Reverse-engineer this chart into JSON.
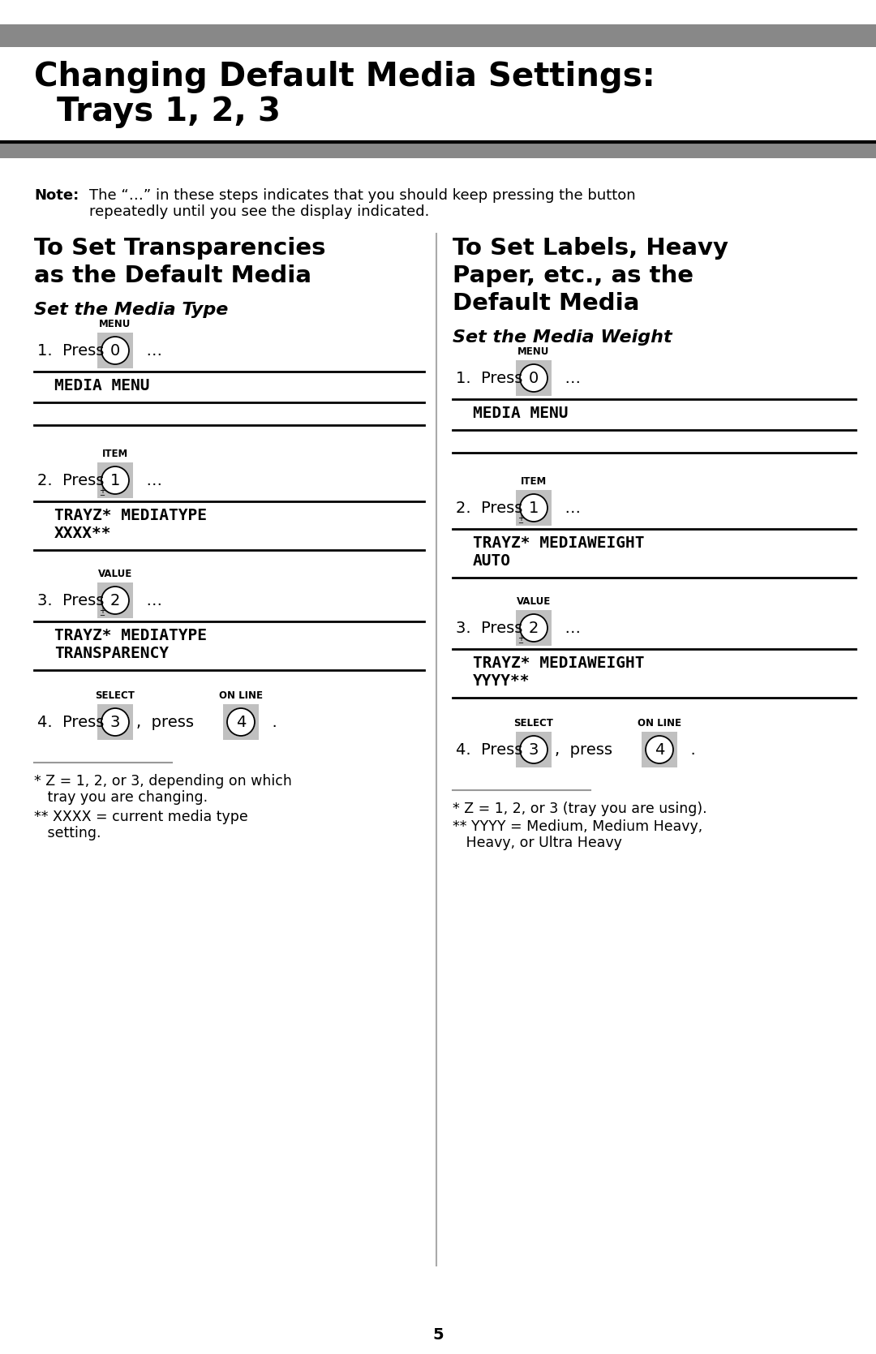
{
  "bg_color": "#ffffff",
  "page_number": "5",
  "top_bar_color": "#888888",
  "bottom_bar_color": "#888888",
  "title_line1": "Changing Default Media Settings:",
  "title_line2": "  Trays 1, 2, 3",
  "note_label": "Note",
  "note_line1": "The “…” in these steps indicates that you should keep pressing the button",
  "note_line2": "repeatedly until you see the display indicated.",
  "left_heading_lines": [
    "To Set Transparencies",
    "as the Default Media"
  ],
  "left_subheading": "Set the Media Type",
  "right_heading_lines": [
    "To Set Labels, Heavy",
    "Paper, etc., as the",
    "Default Media"
  ],
  "right_subheading": "Set the Media Weight",
  "left_displays": [
    "MEDIA MENU",
    "TRAYZ* MEDIATYPE\nXXXX**",
    "TRAYZ* MEDIATYPE\nTRANSPARENCY"
  ],
  "right_displays": [
    "MEDIA MENU",
    "TRAYZ* MEDIAWEIGHT\nAUTO",
    "TRAYZ* MEDIAWEIGHT\nYYYY**"
  ],
  "btn_bg": "#c0c0c0",
  "left_fn1": "* Z = 1, 2, or 3, depending on which",
  "left_fn1b": "   tray you are changing.",
  "left_fn2": "** XXXX = current media type",
  "left_fn2b": "   setting.",
  "right_fn1": "* Z = 1, 2, or 3 (tray you are using).",
  "right_fn2": "** YYYY = Medium, Medium Heavy,",
  "right_fn2b": "   Heavy, or Ultra Heavy"
}
